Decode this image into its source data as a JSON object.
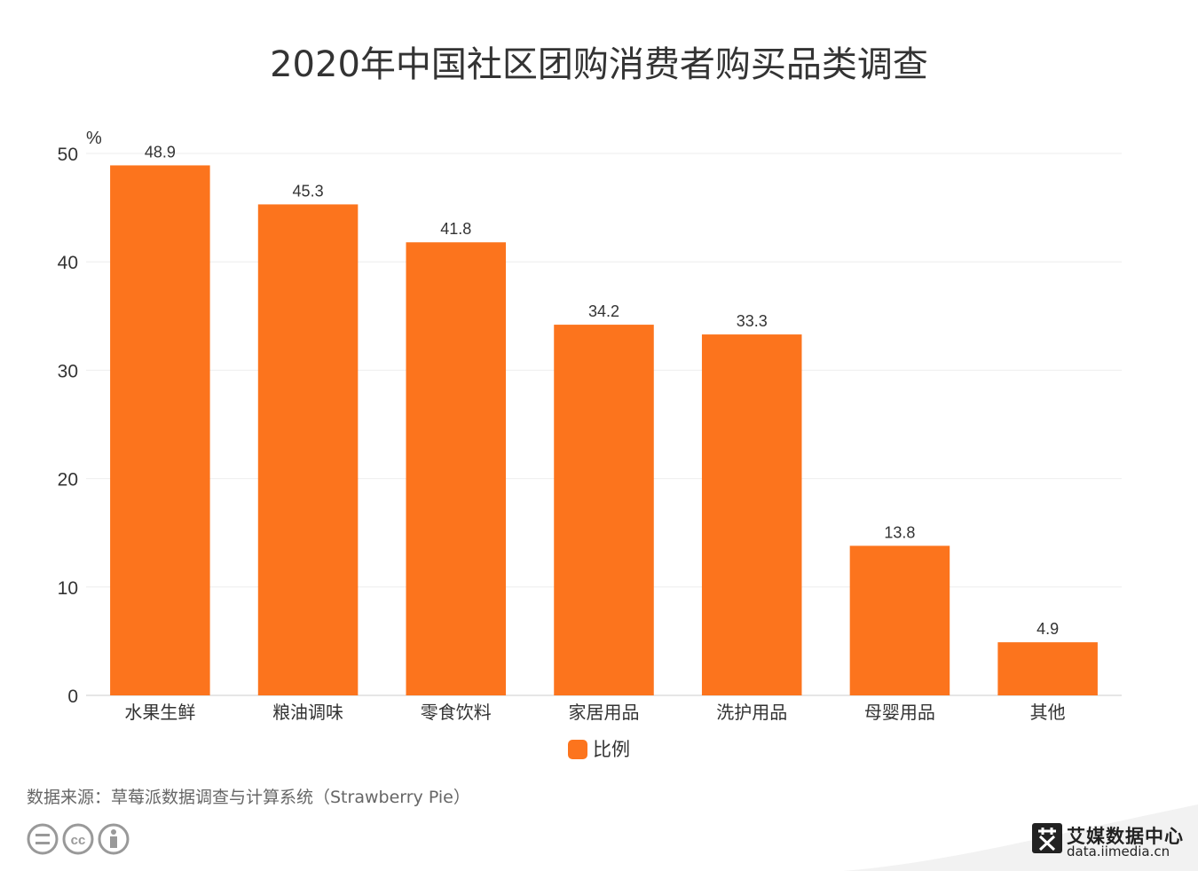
{
  "title": "2020年中国社区团购消费者购买品类调查",
  "source": "数据来源：草莓派数据调查与计算系统（Strawberry Pie）",
  "brand": {
    "name": "艾媒数据中心",
    "url": "data.iimedia.cn",
    "logo_icon": "ai-logo-icon"
  },
  "license_icons": [
    "cc-nd-icon",
    "cc-icon",
    "cc-by-icon"
  ],
  "colors": {
    "bar": "#FC741D",
    "grid": "#EEEEEE",
    "axis": "#CCCCCC"
  },
  "chart_data": {
    "type": "bar",
    "title": "2020年中国社区团购消费者购买品类调查",
    "unit": "%",
    "categories": [
      "水果生鲜",
      "粮油调味",
      "零食饮料",
      "家居用品",
      "洗护用品",
      "母婴用品",
      "其他"
    ],
    "series": [
      {
        "name": "比例",
        "values": [
          48.9,
          45.3,
          41.8,
          34.2,
          33.3,
          13.8,
          4.9
        ]
      }
    ],
    "ylim": [
      0,
      50
    ],
    "yticks": [
      0,
      10,
      20,
      30,
      40,
      50
    ],
    "grid": true,
    "legend": "bottom-center",
    "data_labels": true
  }
}
